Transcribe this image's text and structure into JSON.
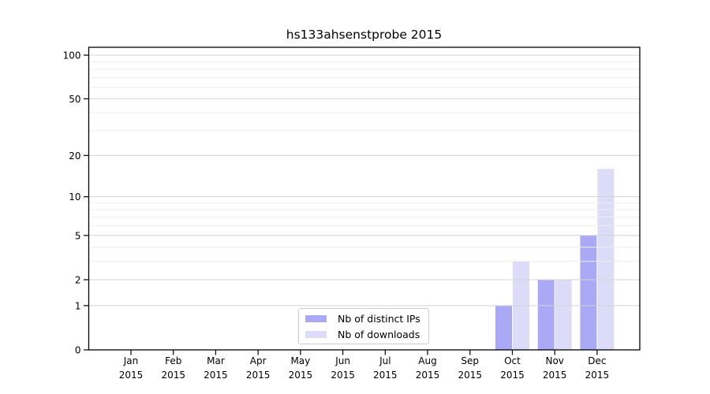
{
  "figure": {
    "title": "hs133ahsenstprobe 2015"
  },
  "chart_data": {
    "type": "bar",
    "title": "hs133ahsenstprobe 2015",
    "categories": [
      "Jan 2015",
      "Feb 2015",
      "Mar 2015",
      "Apr 2015",
      "May 2015",
      "Jun 2015",
      "Jul 2015",
      "Aug 2015",
      "Sep 2015",
      "Oct 2015",
      "Nov 2015",
      "Dec 2015"
    ],
    "x_tick_months": [
      "Jan",
      "Feb",
      "Mar",
      "Apr",
      "May",
      "Jun",
      "Jul",
      "Aug",
      "Sep",
      "Oct",
      "Nov",
      "Dec"
    ],
    "x_tick_year": "2015",
    "series": [
      {
        "name": "Nb of distinct IPs",
        "color": "#a9a9f5",
        "values": [
          0,
          0,
          0,
          0,
          0,
          0,
          0,
          0,
          0,
          1,
          2,
          5
        ]
      },
      {
        "name": "Nb of downloads",
        "color": "#dcdcf8",
        "values": [
          0,
          0,
          0,
          0,
          0,
          0,
          0,
          0,
          0,
          3,
          2,
          16
        ]
      }
    ],
    "xlabel": "",
    "ylabel": "",
    "yscale": "log1p",
    "y_major_ticks": [
      0,
      1,
      2,
      5,
      10,
      20,
      50,
      100
    ],
    "y_minor_gridlines": [
      3,
      4,
      6,
      7,
      8,
      9,
      30,
      40,
      60,
      70,
      80,
      90
    ],
    "ylim": [
      0,
      113
    ],
    "grid": "horizontal",
    "legend_position": "lower-center",
    "colors": {
      "grid_major": "#d4d4d4",
      "grid_minor": "#ededed",
      "spine": "#000000",
      "tick_text": "#000000",
      "background": "#ffffff"
    }
  }
}
